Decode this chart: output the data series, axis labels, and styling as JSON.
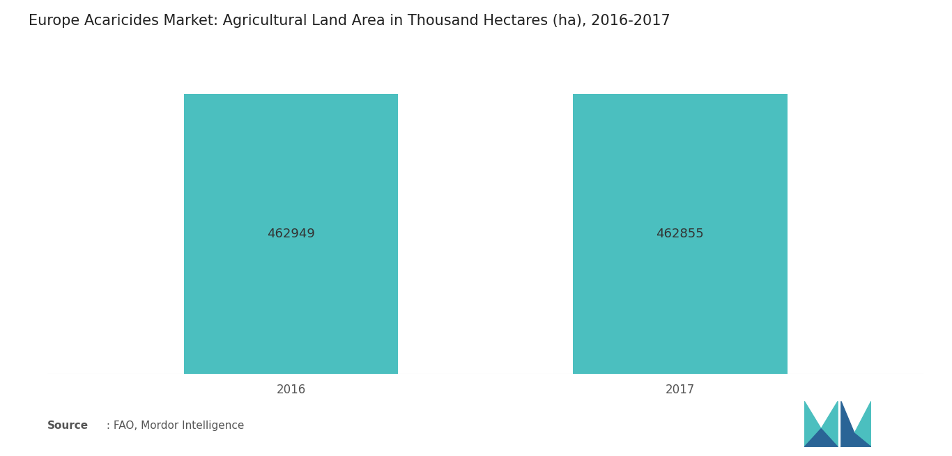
{
  "title": "Europe Acaricides Market: Agricultural Land Area in Thousand Hectares (ha), 2016-2017",
  "categories": [
    "2016",
    "2017"
  ],
  "values": [
    462949,
    462855
  ],
  "bar_color": "#4BBFBF",
  "bar_width": 0.22,
  "label_color": "#333333",
  "label_fontsize": 13,
  "title_fontsize": 15,
  "tick_fontsize": 12,
  "source_bold": "Source",
  "source_normal": " : FAO, Mordor Intelligence",
  "background_color": "#ffffff",
  "ylim": [
    0,
    520000
  ],
  "x_positions": [
    0.3,
    0.7
  ],
  "logo_color_blue": "#2A6496",
  "logo_color_teal": "#4BBFBF"
}
